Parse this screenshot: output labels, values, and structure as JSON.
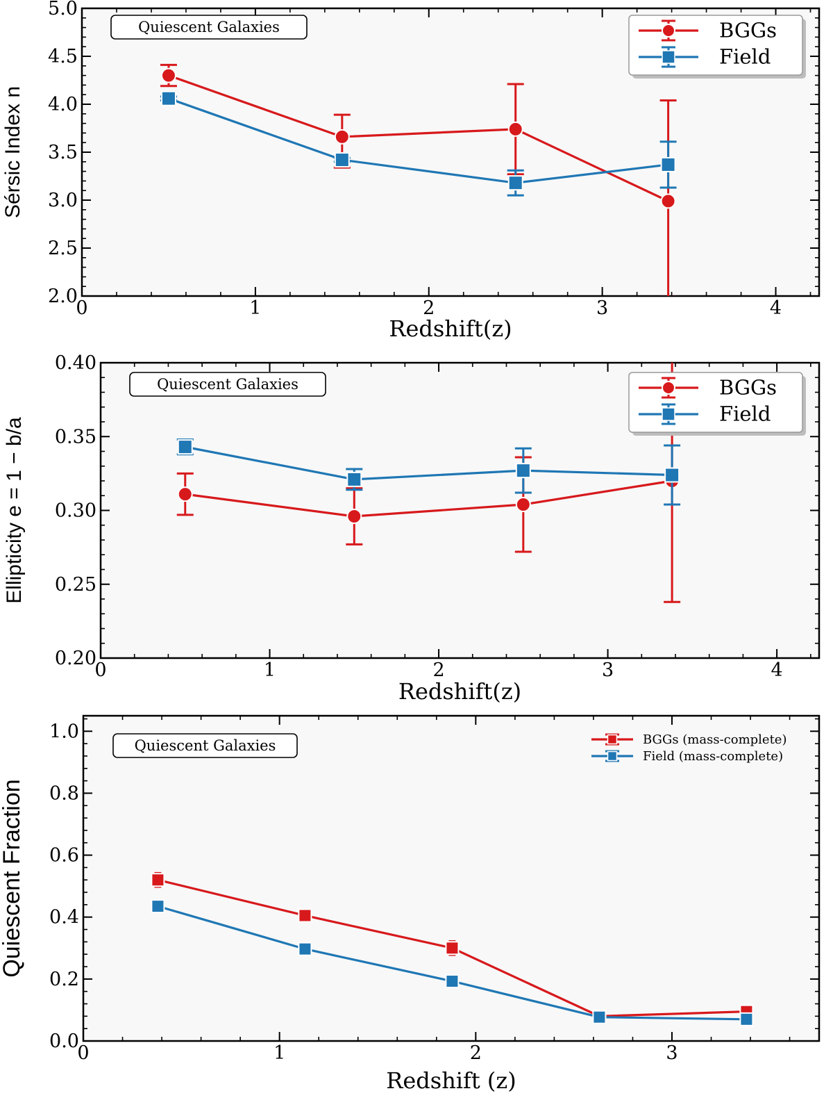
{
  "colors": {
    "bggs": "#d7191c",
    "field": "#1f77b4",
    "plot_bg": "#f8f8f8"
  },
  "chart_data": [
    {
      "type": "line",
      "annotation": "Quiescent Galaxies",
      "ylabel": "Sérsic Index n",
      "xlabel": "Redshift(z)",
      "xlim": [
        0,
        4.25
      ],
      "ylim": [
        2.0,
        5.0
      ],
      "xticks": [
        0,
        1,
        2,
        3,
        4
      ],
      "xtick_labels": [
        "0",
        "1",
        "2",
        "3",
        "4"
      ],
      "yticks": [
        2.0,
        2.5,
        3.0,
        3.5,
        4.0,
        4.5,
        5.0
      ],
      "ytick_labels": [
        "2.0",
        "2.5",
        "3.0",
        "3.5",
        "4.0",
        "4.5",
        "5.0"
      ],
      "legend_position": "top-right",
      "series": [
        {
          "name": "BGGs",
          "marker": "circle",
          "color": "#d7191c",
          "x": [
            0.5,
            1.5,
            2.5,
            3.38
          ],
          "y": [
            4.3,
            3.66,
            3.74,
            2.99
          ],
          "err_low": [
            0.11,
            0.32,
            0.47,
            1.0
          ],
          "err_high": [
            0.11,
            0.23,
            0.47,
            1.05
          ]
        },
        {
          "name": "Field",
          "marker": "square",
          "color": "#1f77b4",
          "x": [
            0.5,
            1.5,
            2.5,
            3.38
          ],
          "y": [
            4.06,
            3.42,
            3.18,
            3.37
          ],
          "err_low": [
            0.02,
            0.02,
            0.13,
            0.24
          ],
          "err_high": [
            0.02,
            0.02,
            0.13,
            0.24
          ]
        }
      ]
    },
    {
      "type": "line",
      "annotation": "Quiescent Galaxies",
      "ylabel": "Ellipticity e = 1 − b/a",
      "xlabel": "Redshift(z)",
      "xlim": [
        0,
        4.25
      ],
      "ylim": [
        0.2,
        0.4
      ],
      "xticks": [
        0,
        1,
        2,
        3,
        4
      ],
      "xtick_labels": [
        "0",
        "1",
        "2",
        "3",
        "4"
      ],
      "yticks": [
        0.2,
        0.25,
        0.3,
        0.35,
        0.4
      ],
      "ytick_labels": [
        "0.20",
        "0.25",
        "0.30",
        "0.35",
        "0.40"
      ],
      "legend_position": "top-right",
      "series": [
        {
          "name": "BGGs",
          "marker": "circle",
          "color": "#d7191c",
          "x": [
            0.5,
            1.5,
            2.5,
            3.38
          ],
          "y": [
            0.311,
            0.296,
            0.304,
            0.32
          ],
          "err_low": [
            0.014,
            0.019,
            0.032,
            0.082
          ],
          "err_high": [
            0.014,
            0.019,
            0.032,
            0.082
          ]
        },
        {
          "name": "Field",
          "marker": "square",
          "color": "#1f77b4",
          "x": [
            0.5,
            1.5,
            2.5,
            3.38
          ],
          "y": [
            0.343,
            0.321,
            0.327,
            0.324
          ],
          "err_low": [
            0.005,
            0.007,
            0.015,
            0.02
          ],
          "err_high": [
            0.005,
            0.007,
            0.015,
            0.02
          ]
        }
      ]
    },
    {
      "type": "line",
      "annotation": "Quiescent Galaxies",
      "ylabel": "Quiescent Fraction",
      "xlabel": "Redshift (z)",
      "xlim": [
        0,
        3.75
      ],
      "ylim": [
        0.0,
        1.05
      ],
      "xticks": [
        0,
        1,
        2,
        3
      ],
      "xtick_labels": [
        "0",
        "1",
        "2",
        "3"
      ],
      "yticks": [
        0.0,
        0.2,
        0.4,
        0.6,
        0.8,
        1.0
      ],
      "ytick_labels": [
        "0.0",
        "0.2",
        "0.4",
        "0.6",
        "0.8",
        "1.0"
      ],
      "legend_position": "top-right",
      "series": [
        {
          "name": "BGGs (mass-complete)",
          "marker": "square",
          "color": "#d7191c",
          "x": [
            0.38,
            1.13,
            1.88,
            2.63,
            3.38
          ],
          "y": [
            0.52,
            0.405,
            0.3,
            0.08,
            0.095
          ],
          "err_low": [
            0.022,
            0.018,
            0.022,
            0.01,
            0.018
          ],
          "err_high": [
            0.022,
            0.018,
            0.022,
            0.01,
            0.018
          ]
        },
        {
          "name": "Field (mass-complete)",
          "marker": "square",
          "color": "#1f77b4",
          "x": [
            0.38,
            1.13,
            1.88,
            2.63,
            3.38
          ],
          "y": [
            0.435,
            0.297,
            0.193,
            0.077,
            0.07
          ],
          "err_low": [
            0.004,
            0.004,
            0.004,
            0.003,
            0.003
          ],
          "err_high": [
            0.004,
            0.004,
            0.004,
            0.003,
            0.003
          ]
        }
      ]
    }
  ]
}
